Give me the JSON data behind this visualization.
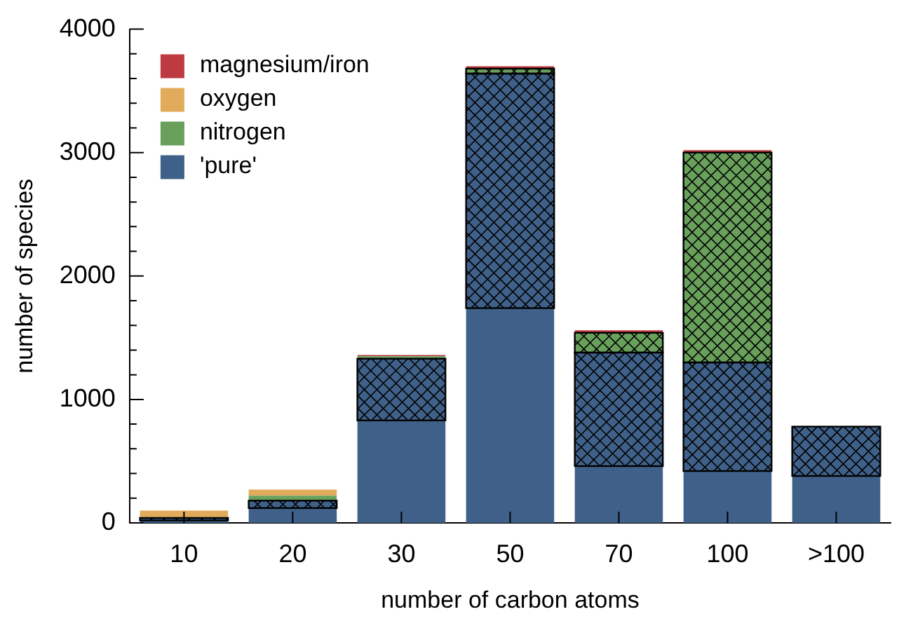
{
  "chart_data": {
    "type": "bar",
    "stacked": true,
    "xlabel": "number of carbon atoms",
    "ylabel": "number of species",
    "categories": [
      "10",
      "20",
      "30",
      "50",
      "70",
      "100",
      ">100"
    ],
    "series": [
      {
        "name": "'pure'",
        "color": "#3f6189",
        "values": [
          20,
          120,
          830,
          1740,
          460,
          420,
          380
        ]
      },
      {
        "color": "#3f6189",
        "values": [
          20,
          60,
          500,
          1900,
          920,
          880,
          400
        ]
      },
      {
        "name": "nitrogen",
        "color": "#68a05c",
        "values": [
          0,
          40,
          20,
          0,
          0,
          0,
          0
        ]
      },
      {
        "color": "#68a05c",
        "values": [
          0,
          0,
          0,
          40,
          160,
          1700,
          0
        ]
      },
      {
        "name": "oxygen",
        "color": "#e2ab5c",
        "values": [
          60,
          50,
          0,
          0,
          0,
          0,
          0
        ]
      },
      {
        "name": "magnesium/iron",
        "color": "#bd3b40",
        "values": [
          0,
          0,
          10,
          20,
          20,
          20,
          0
        ]
      }
    ],
    "ylim": [
      0,
      4000
    ],
    "yticks": [
      0,
      {
        "value": 200,
        "label": null
      },
      {
        "value": 400,
        "label": null
      },
      {
        "value": 600,
        "label": null
      },
      {
        "value": 800,
        "label": null
      },
      1000,
      {
        "value": 1200,
        "label": null
      },
      {
        "value": 1400,
        "label": null
      },
      {
        "value": 1600,
        "label": null
      },
      {
        "value": 1800,
        "label": null
      },
      2000,
      {
        "value": 2200,
        "label": null
      },
      {
        "value": 2400,
        "label": null
      },
      {
        "value": 2600,
        "label": null
      },
      {
        "value": 2800,
        "label": null
      },
      3000,
      {
        "value": 3200,
        "label": null
      },
      {
        "value": 3400,
        "label": null
      },
      {
        "value": 3600,
        "label": null
      },
      {
        "value": 3800,
        "label": null
      },
      4000
    ],
    "grid": false,
    "legend": "top left"
  }
}
